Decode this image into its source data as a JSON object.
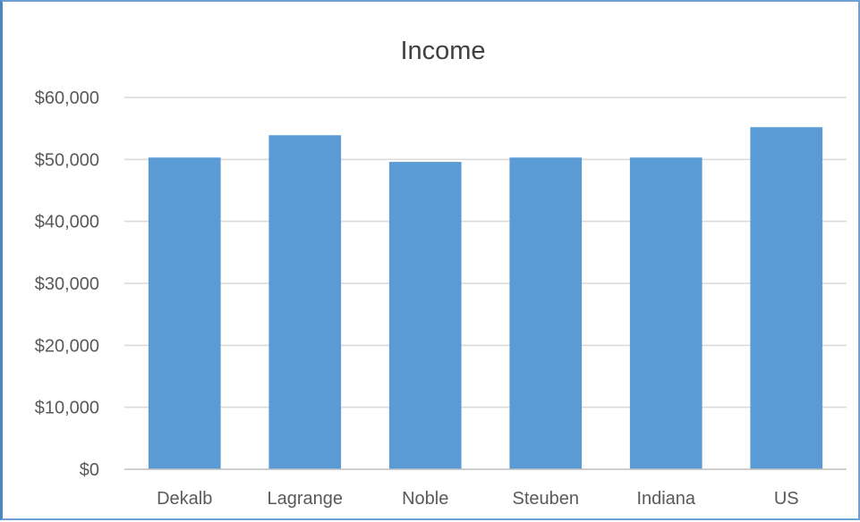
{
  "chart_data": {
    "type": "bar",
    "title": "Income",
    "xlabel": "",
    "ylabel": "",
    "categories": [
      "Dekalb",
      "Lagrange",
      "Noble",
      "Steuben",
      "Indiana",
      "US"
    ],
    "values": [
      50300,
      53900,
      49600,
      50300,
      50300,
      55200
    ],
    "ylim": [
      0,
      60000
    ],
    "yticks": [
      0,
      10000,
      20000,
      30000,
      40000,
      50000,
      60000
    ],
    "ytick_labels": [
      "$0",
      "$10,000",
      "$20,000",
      "$30,000",
      "$40,000",
      "$50,000",
      "$60,000"
    ],
    "grid": true,
    "legend": "none",
    "bar_color": "#5b9bd5"
  }
}
